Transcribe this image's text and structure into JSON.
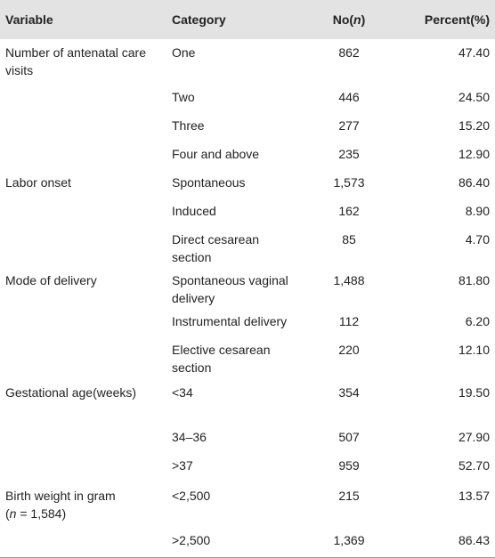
{
  "headers": {
    "variable": "Variable",
    "category": "Category",
    "no_prefix": "No(",
    "no_n": "n",
    "no_suffix": ")",
    "percent": "Percent(%)"
  },
  "rows": [
    {
      "variable": "Number of antenatal care visits",
      "category": "One",
      "no": "862",
      "percent": "47.40"
    },
    {
      "variable": "",
      "category": "Two",
      "no": "446",
      "percent": "24.50"
    },
    {
      "variable": "",
      "category": "Three",
      "no": "277",
      "percent": "15.20"
    },
    {
      "variable": "",
      "category": "Four and above",
      "no": "235",
      "percent": "12.90"
    },
    {
      "variable": "Labor onset",
      "category": "Spontaneous",
      "no": "1,573",
      "percent": "86.40"
    },
    {
      "variable": "",
      "category": "Induced",
      "no": "162",
      "percent": "8.90"
    },
    {
      "variable": "",
      "category": "Direct cesarean section",
      "no": "85",
      "percent": "4.70"
    },
    {
      "variable": "Mode of delivery",
      "category": "Spontaneous vaginal delivery",
      "no": "1,488",
      "percent": "81.80"
    },
    {
      "variable": "",
      "category": "Instrumental delivery",
      "no": "112",
      "percent": "6.20"
    },
    {
      "variable": "",
      "category": "Elective cesarean section",
      "no": "220",
      "percent": "12.10"
    },
    {
      "variable": "Gestational age(weeks)",
      "category": "<34",
      "no": "354",
      "percent": "19.50"
    },
    {
      "variable": "",
      "category": "34–36",
      "no": "507",
      "percent": "27.90"
    },
    {
      "variable": "",
      "category": ">37",
      "no": "959",
      "percent": "52.70"
    },
    {
      "variable_main": "Birth weight in gram",
      "variable_sub_prefix": "(",
      "variable_sub_n": "n",
      "variable_sub_suffix": " = 1,584)",
      "category": "<2,500",
      "no": "215",
      "percent": "13.57"
    },
    {
      "variable": "",
      "category": ">2,500",
      "no": "1,369",
      "percent": "86.43"
    }
  ]
}
